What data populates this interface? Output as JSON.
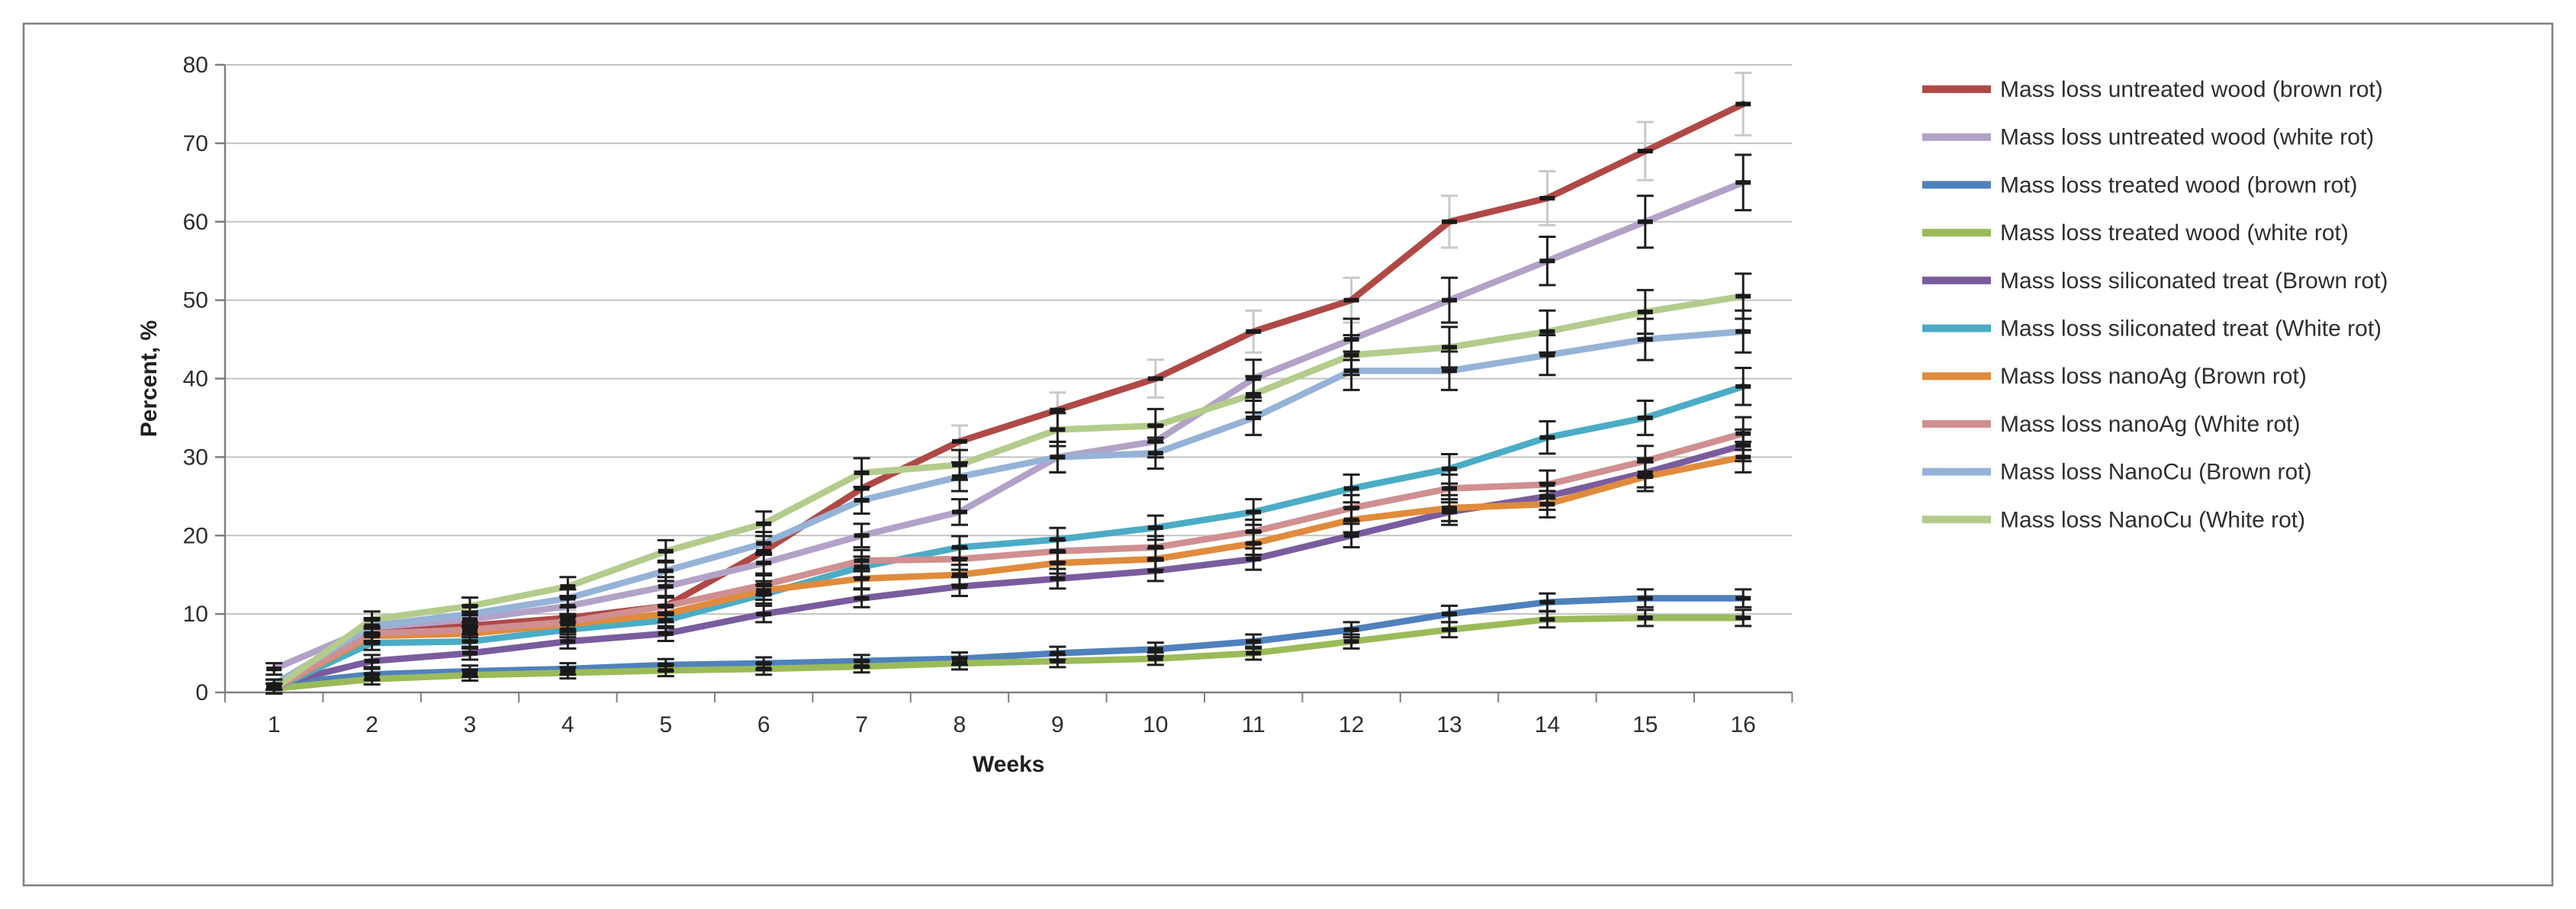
{
  "figure": {
    "background": "#ffffff",
    "border_color": "#7f7f7f",
    "plot": {
      "gridline_color": "#c3c3c3",
      "axis_color": "#7f7f7f",
      "marker_color": "#1a1a1a",
      "default_errorbar_color": "#1f1f1f"
    }
  },
  "chart_data": {
    "type": "line",
    "title": "",
    "xlabel": "Weeks",
    "ylabel": "Percent, %",
    "x": [
      1,
      2,
      3,
      4,
      5,
      6,
      7,
      8,
      9,
      10,
      11,
      12,
      13,
      14,
      15,
      16
    ],
    "xtick_labels": [
      "1",
      "2",
      "3",
      "4",
      "5",
      "6",
      "7",
      "8",
      "9",
      "10",
      "11",
      "12",
      "13",
      "14",
      "15",
      "16"
    ],
    "ytick_labels": [
      "0",
      "10",
      "20",
      "30",
      "40",
      "50",
      "60",
      "70",
      "80"
    ],
    "ylim": [
      0,
      80
    ],
    "ytick_step": 10,
    "grid": "horizontal",
    "legend_position": "right",
    "error_bars": "all points, approx ±(0.6 + 4.5% of value)",
    "series": [
      {
        "name": "Mass loss untreated wood (brown rot)",
        "color": "#b04946",
        "errorbar_color": "#c9c9c9",
        "values": [
          1,
          7.5,
          8.5,
          9.5,
          11,
          18,
          26,
          32,
          36,
          40,
          46,
          50,
          60,
          63,
          69,
          75
        ]
      },
      {
        "name": "Mass loss untreated wood (white rot)",
        "color": "#b3a2c7",
        "errorbar_color": "#1f1f1f",
        "values": [
          3,
          8.3,
          9.3,
          11,
          13.5,
          16.5,
          20,
          23,
          30,
          32,
          40,
          45,
          50,
          55,
          60,
          65
        ]
      },
      {
        "name": "Mass loss treated wood (brown rot)",
        "color": "#4f81bd",
        "errorbar_color": "#1f1f1f",
        "values": [
          1,
          2.3,
          2.7,
          3,
          3.5,
          3.7,
          4,
          4.3,
          5,
          5.5,
          6.5,
          8,
          10,
          11.5,
          12,
          12
        ]
      },
      {
        "name": "Mass loss treated wood (white rot)",
        "color": "#9bbb59",
        "errorbar_color": "#1f1f1f",
        "values": [
          0.5,
          1.7,
          2.2,
          2.5,
          2.8,
          3,
          3.3,
          3.7,
          4,
          4.3,
          5,
          6.5,
          8,
          9.3,
          9.5,
          9.5
        ]
      },
      {
        "name": "Mass loss siliconated treat (Brown rot)",
        "color": "#7a5c9e",
        "errorbar_color": "#1f1f1f",
        "values": [
          1,
          4,
          5,
          6.5,
          7.5,
          10,
          12,
          13.5,
          14.5,
          15.5,
          17,
          20,
          23,
          25,
          28,
          31.5
        ]
      },
      {
        "name": "Mass loss siliconated treat (White rot)",
        "color": "#4bacc6",
        "errorbar_color": "#1f1f1f",
        "values": [
          0.5,
          6.3,
          6.5,
          8,
          9.2,
          12.5,
          16,
          18.5,
          19.5,
          21,
          23,
          26,
          28.5,
          32.5,
          35,
          39
        ]
      },
      {
        "name": "Mass loss nanoAg (Brown rot)",
        "color": "#e08b3c",
        "errorbar_color": "#1f1f1f",
        "values": [
          0.5,
          7.2,
          7.5,
          8.7,
          10,
          13,
          14.5,
          15,
          16.5,
          17,
          19,
          22,
          23.5,
          24,
          27.5,
          30
        ]
      },
      {
        "name": "Mass loss nanoAg (White rot)",
        "color": "#d08f90",
        "errorbar_color": "#1f1f1f",
        "values": [
          0.5,
          7.5,
          8,
          9,
          11,
          13.7,
          16.8,
          17,
          18,
          18.5,
          20.5,
          23.5,
          26,
          26.5,
          29.5,
          33
        ]
      },
      {
        "name": "Mass loss NanoCu (Brown rot)",
        "color": "#95b3d7",
        "errorbar_color": "#1f1f1f",
        "values": [
          1,
          8.5,
          10,
          12,
          15.5,
          19,
          24.5,
          27.5,
          30,
          30.5,
          35,
          41,
          41,
          43,
          45,
          46
        ]
      },
      {
        "name": "Mass loss NanoCu (White rot)",
        "color": "#b3cc8b",
        "errorbar_color": "#1f1f1f",
        "values": [
          0.5,
          9.3,
          11,
          13.5,
          18,
          21.5,
          28,
          29,
          33.5,
          34,
          38,
          43,
          44,
          46,
          48.5,
          50.5
        ]
      }
    ]
  }
}
